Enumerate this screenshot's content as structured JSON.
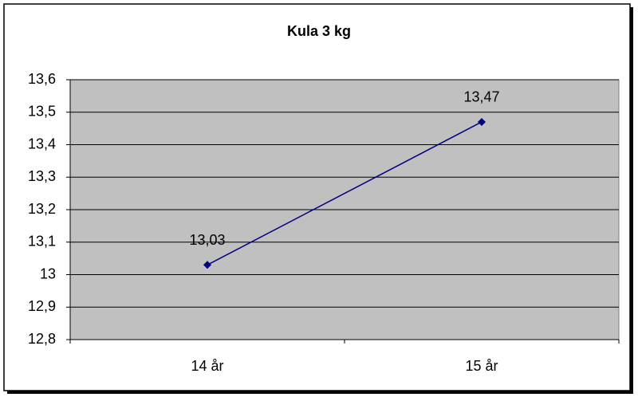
{
  "chart_data": {
    "type": "line",
    "title": "Kula 3 kg",
    "categories": [
      "14 år",
      "15 år"
    ],
    "series": [
      {
        "color": "#000080",
        "values": [
          13.03,
          13.47
        ],
        "value_labels": [
          "13,03",
          "13,47"
        ]
      }
    ],
    "ylim": [
      12.8,
      13.6
    ],
    "yticks": [
      {
        "value": 12.8,
        "label": "12,8"
      },
      {
        "value": 12.9,
        "label": "12,9"
      },
      13,
      {
        "value": 13.1,
        "label": "13,1"
      },
      {
        "value": 13.2,
        "label": "13,2"
      },
      {
        "value": 13.3,
        "label": "13,3"
      },
      {
        "value": 13.4,
        "label": "13,4"
      },
      {
        "value": 13.5,
        "label": "13,5"
      },
      {
        "value": 13.6,
        "label": "13,6"
      }
    ],
    "grid": true,
    "plot_background": "#c0c0c0"
  }
}
